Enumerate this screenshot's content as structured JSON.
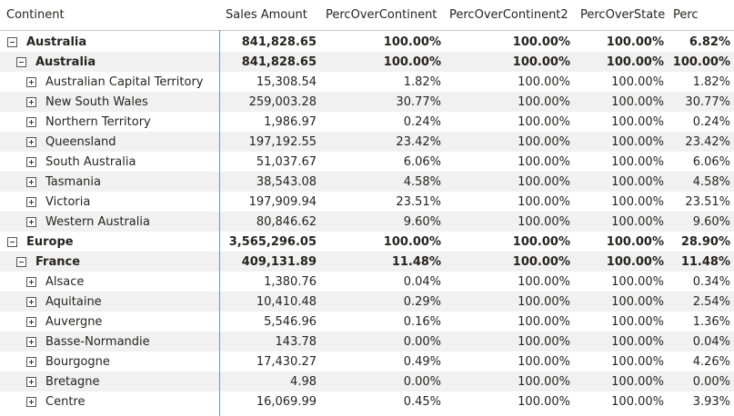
{
  "columns": [
    "Continent",
    "Sales Amount",
    "PercOverContinent",
    "PercOverContinent2",
    "PercOverState",
    "Perc"
  ],
  "rows": [
    {
      "label": "Australia",
      "level": 0,
      "toggle": "minus",
      "bold": true,
      "shaded": false,
      "values": [
        "841,828.65",
        "100.00%",
        "100.00%",
        "100.00%",
        "6.82%"
      ]
    },
    {
      "label": "Australia",
      "level": 1,
      "toggle": "minus",
      "bold": true,
      "shaded": true,
      "values": [
        "841,828.65",
        "100.00%",
        "100.00%",
        "100.00%",
        "100.00%"
      ]
    },
    {
      "label": "Australian Capital Territory",
      "level": 2,
      "toggle": "plus",
      "bold": false,
      "shaded": false,
      "values": [
        "15,308.54",
        "1.82%",
        "100.00%",
        "100.00%",
        "1.82%"
      ]
    },
    {
      "label": "New South Wales",
      "level": 2,
      "toggle": "plus",
      "bold": false,
      "shaded": true,
      "values": [
        "259,003.28",
        "30.77%",
        "100.00%",
        "100.00%",
        "30.77%"
      ]
    },
    {
      "label": "Northern Territory",
      "level": 2,
      "toggle": "plus",
      "bold": false,
      "shaded": false,
      "values": [
        "1,986.97",
        "0.24%",
        "100.00%",
        "100.00%",
        "0.24%"
      ]
    },
    {
      "label": "Queensland",
      "level": 2,
      "toggle": "plus",
      "bold": false,
      "shaded": true,
      "values": [
        "197,192.55",
        "23.42%",
        "100.00%",
        "100.00%",
        "23.42%"
      ]
    },
    {
      "label": "South Australia",
      "level": 2,
      "toggle": "plus",
      "bold": false,
      "shaded": false,
      "values": [
        "51,037.67",
        "6.06%",
        "100.00%",
        "100.00%",
        "6.06%"
      ]
    },
    {
      "label": "Tasmania",
      "level": 2,
      "toggle": "plus",
      "bold": false,
      "shaded": true,
      "values": [
        "38,543.08",
        "4.58%",
        "100.00%",
        "100.00%",
        "4.58%"
      ]
    },
    {
      "label": "Victoria",
      "level": 2,
      "toggle": "plus",
      "bold": false,
      "shaded": false,
      "values": [
        "197,909.94",
        "23.51%",
        "100.00%",
        "100.00%",
        "23.51%"
      ]
    },
    {
      "label": "Western Australia",
      "level": 2,
      "toggle": "plus",
      "bold": false,
      "shaded": true,
      "values": [
        "80,846.62",
        "9.60%",
        "100.00%",
        "100.00%",
        "9.60%"
      ]
    },
    {
      "label": "Europe",
      "level": 0,
      "toggle": "minus",
      "bold": true,
      "shaded": false,
      "values": [
        "3,565,296.05",
        "100.00%",
        "100.00%",
        "100.00%",
        "28.90%"
      ]
    },
    {
      "label": "France",
      "level": 1,
      "toggle": "minus",
      "bold": true,
      "shaded": true,
      "values": [
        "409,131.89",
        "11.48%",
        "100.00%",
        "100.00%",
        "11.48%"
      ]
    },
    {
      "label": "Alsace",
      "level": 2,
      "toggle": "plus",
      "bold": false,
      "shaded": false,
      "values": [
        "1,380.76",
        "0.04%",
        "100.00%",
        "100.00%",
        "0.34%"
      ]
    },
    {
      "label": "Aquitaine",
      "level": 2,
      "toggle": "plus",
      "bold": false,
      "shaded": true,
      "values": [
        "10,410.48",
        "0.29%",
        "100.00%",
        "100.00%",
        "2.54%"
      ]
    },
    {
      "label": "Auvergne",
      "level": 2,
      "toggle": "plus",
      "bold": false,
      "shaded": false,
      "values": [
        "5,546.96",
        "0.16%",
        "100.00%",
        "100.00%",
        "1.36%"
      ]
    },
    {
      "label": "Basse-Normandie",
      "level": 2,
      "toggle": "plus",
      "bold": false,
      "shaded": true,
      "values": [
        "143.78",
        "0.00%",
        "100.00%",
        "100.00%",
        "0.04%"
      ]
    },
    {
      "label": "Bourgogne",
      "level": 2,
      "toggle": "plus",
      "bold": false,
      "shaded": false,
      "values": [
        "17,430.27",
        "0.49%",
        "100.00%",
        "100.00%",
        "4.26%"
      ]
    },
    {
      "label": "Bretagne",
      "level": 2,
      "toggle": "plus",
      "bold": false,
      "shaded": true,
      "values": [
        "4.98",
        "0.00%",
        "100.00%",
        "100.00%",
        "0.00%"
      ]
    },
    {
      "label": "Centre",
      "level": 2,
      "toggle": "plus",
      "bold": false,
      "shaded": false,
      "values": [
        "16,069.99",
        "0.45%",
        "100.00%",
        "100.00%",
        "3.93%"
      ]
    }
  ]
}
